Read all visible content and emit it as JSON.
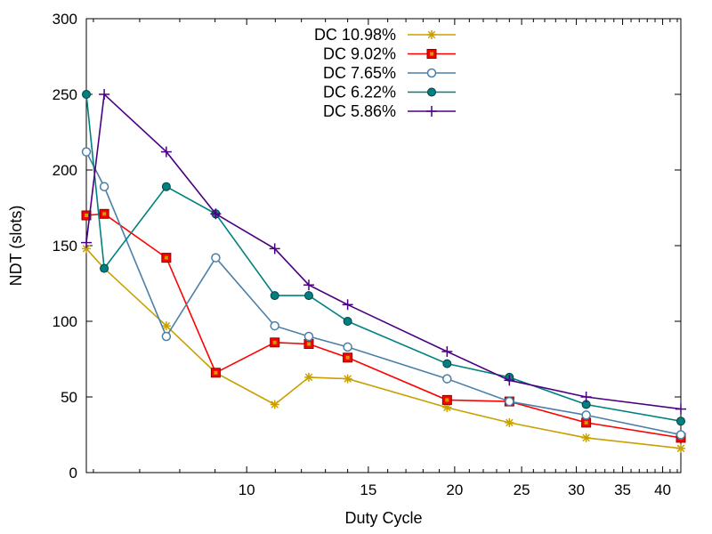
{
  "chart_data": {
    "type": "line",
    "title": "",
    "xlabel": "Duty Cycle",
    "ylabel": "NDT (slots)",
    "xscale": "log",
    "xlim": [
      5.86,
      42.5
    ],
    "ylim": [
      0,
      300
    ],
    "xticks": [
      10,
      15,
      20,
      25,
      30,
      35,
      40
    ],
    "yticks": [
      0,
      50,
      100,
      150,
      200,
      250,
      300
    ],
    "grid": false,
    "legend_position": "top-center",
    "x": [
      5.86,
      6.22,
      7.65,
      9.02,
      10.98,
      12.3,
      14.0,
      19.5,
      24.0,
      31.0,
      42.5
    ],
    "series": [
      {
        "name": "DC 10.98%",
        "color": "#c8a000",
        "marker": "asterisk",
        "values": [
          148,
          135,
          97,
          66,
          45,
          63,
          62,
          43,
          33,
          23,
          16
        ]
      },
      {
        "name": "DC 9.02%",
        "color": "#ff0000",
        "marker": "filled-square",
        "values": [
          170,
          171,
          142,
          66,
          86,
          85,
          76,
          48,
          47,
          33,
          23
        ]
      },
      {
        "name": "DC 7.65%",
        "color": "#4a7fa7",
        "marker": "open-circle",
        "values": [
          212,
          189,
          90,
          142,
          97,
          90,
          83,
          62,
          47,
          38,
          25
        ]
      },
      {
        "name": "DC 6.22%",
        "color": "#008080",
        "marker": "filled-circle",
        "values": [
          250,
          135,
          189,
          171,
          117,
          117,
          100,
          72,
          63,
          45,
          34
        ]
      },
      {
        "name": "DC 5.86%",
        "color": "#4b0082",
        "marker": "plus",
        "values": [
          152,
          250,
          212,
          171,
          148,
          124,
          111,
          80,
          61,
          50,
          42
        ]
      }
    ]
  }
}
